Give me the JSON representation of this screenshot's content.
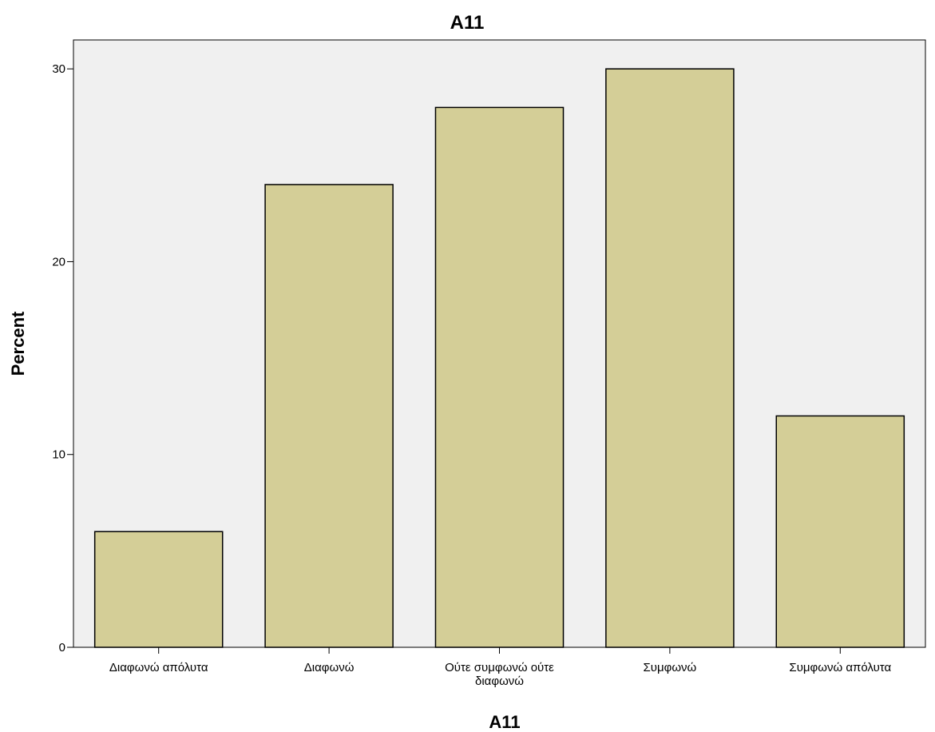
{
  "colors": {
    "plot_background": "#f0f0f0",
    "bar_fill": "#d4ce97",
    "bar_stroke": "#000000",
    "axis": "#000000"
  },
  "chart_data": {
    "type": "bar",
    "title": "A11",
    "xlabel": "A11",
    "ylabel": "Percent",
    "categories": [
      "Διαφωνώ απόλυτα",
      "Διαφωνώ",
      "Ούτε συμφωνώ ούτε διαφωνώ",
      "Συμφωνώ",
      "Συμφωνώ απόλυτα"
    ],
    "category_lines": [
      [
        "Διαφωνώ απόλυτα"
      ],
      [
        "Διαφωνώ"
      ],
      [
        "Ούτε συμφωνώ ούτε",
        "διαφωνώ"
      ],
      [
        "Συμφωνώ"
      ],
      [
        "Συμφωνώ απόλυτα"
      ]
    ],
    "values": [
      6,
      24,
      28,
      30,
      12
    ],
    "ylim": [
      0,
      31.5
    ],
    "yticks": [
      0,
      10,
      20,
      30
    ],
    "grid": false,
    "legend": "none"
  }
}
